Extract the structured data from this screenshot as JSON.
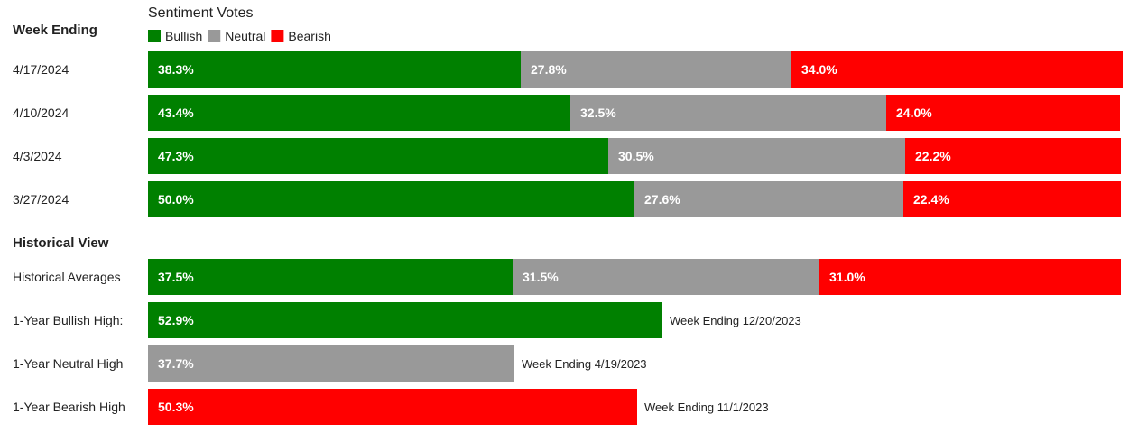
{
  "chart_data": {
    "type": "bar",
    "stacked": true,
    "orientation": "horizontal",
    "title": "Sentiment Votes",
    "legend": {
      "position": "top-left",
      "entries": [
        {
          "name": "Bullish",
          "color": "#008000"
        },
        {
          "name": "Neutral",
          "color": "#999999"
        },
        {
          "name": "Bearish",
          "color": "#ff0000"
        }
      ]
    },
    "sections": [
      {
        "heading": "Week Ending",
        "rows": [
          {
            "label": "4/17/2024",
            "bullish": 38.3,
            "neutral": 27.8,
            "bearish": 34.0,
            "labels": {
              "bullish": "38.3%",
              "neutral": "27.8%",
              "bearish": "34.0%"
            }
          },
          {
            "label": "4/10/2024",
            "bullish": 43.4,
            "neutral": 32.5,
            "bearish": 24.0,
            "labels": {
              "bullish": "43.4%",
              "neutral": "32.5%",
              "bearish": "24.0%"
            }
          },
          {
            "label": "4/3/2024",
            "bullish": 47.3,
            "neutral": 30.5,
            "bearish": 22.2,
            "labels": {
              "bullish": "47.3%",
              "neutral": "30.5%",
              "bearish": "22.2%"
            }
          },
          {
            "label": "3/27/2024",
            "bullish": 50.0,
            "neutral": 27.6,
            "bearish": 22.4,
            "labels": {
              "bullish": "50.0%",
              "neutral": "27.6%",
              "bearish": "22.4%"
            }
          }
        ]
      },
      {
        "heading": "Historical View",
        "rows": [
          {
            "label": "Historical Averages",
            "bullish": 37.5,
            "neutral": 31.5,
            "bearish": 31.0,
            "labels": {
              "bullish": "37.5%",
              "neutral": "31.5%",
              "bearish": "31.0%"
            }
          },
          {
            "label": "1-Year Bullish High:",
            "bullish": 52.9,
            "labels": {
              "bullish": "52.9%"
            },
            "note": "Week Ending 12/20/2023"
          },
          {
            "label": "1-Year Neutral High",
            "neutral": 37.7,
            "labels": {
              "neutral": "37.7%"
            },
            "note": "Week Ending 4/19/2023"
          },
          {
            "label": "1-Year Bearish High",
            "bearish": 50.3,
            "labels": {
              "bearish": "50.3%"
            },
            "note": "Week Ending 11/1/2023"
          }
        ]
      }
    ],
    "xlim": [
      0,
      100
    ],
    "grid": false
  }
}
